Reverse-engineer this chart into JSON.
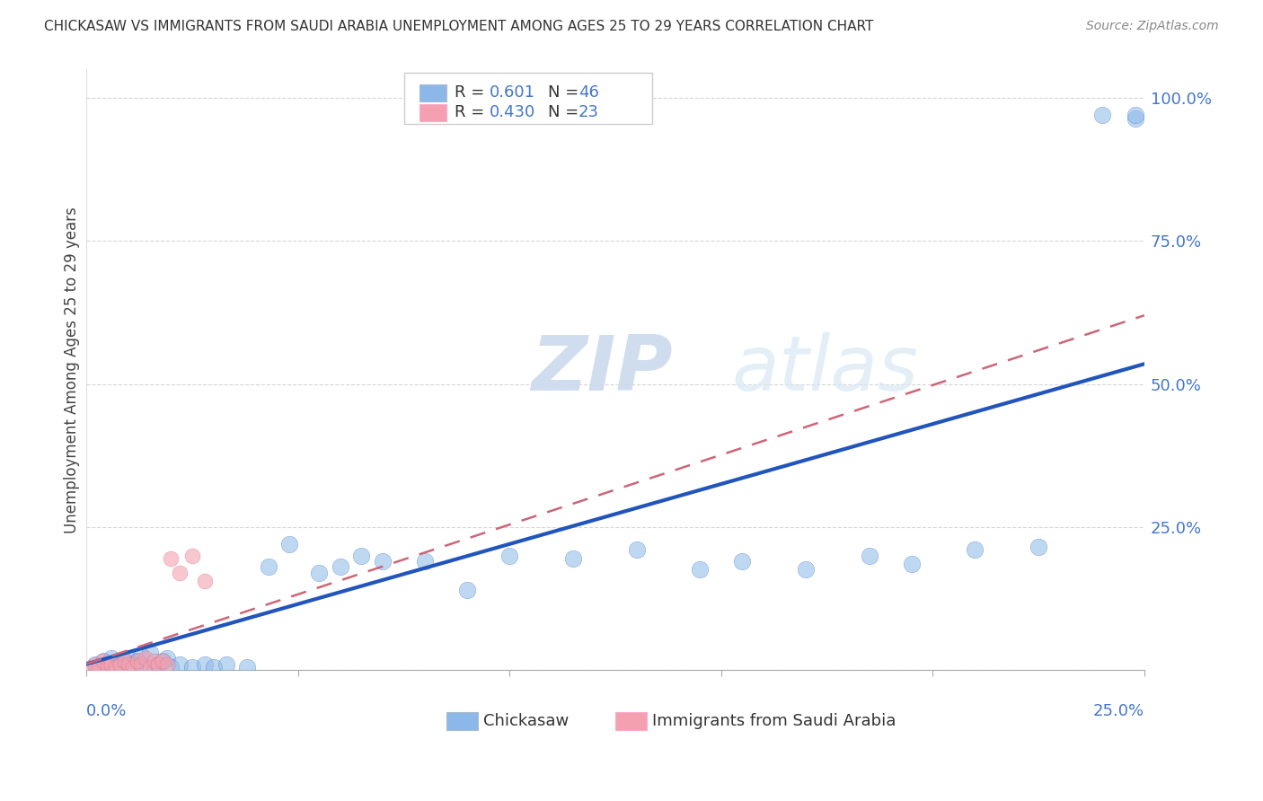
{
  "title": "CHICKASAW VS IMMIGRANTS FROM SAUDI ARABIA UNEMPLOYMENT AMONG AGES 25 TO 29 YEARS CORRELATION CHART",
  "source": "Source: ZipAtlas.com",
  "ylabel": "Unemployment Among Ages 25 to 29 years",
  "xlim": [
    0.0,
    0.25
  ],
  "ylim": [
    0.0,
    1.05
  ],
  "legend_R1": "0.601",
  "legend_N1": "46",
  "legend_R2": "0.430",
  "legend_N2": "23",
  "color_blue": "#8BB8E8",
  "color_pink": "#F4A0B0",
  "color_blue_line": "#2255BB",
  "color_pink_line": "#CC6677",
  "watermark_zip": "ZIP",
  "watermark_atlas": "atlas",
  "chickasaw_x": [
    0.002,
    0.003,
    0.004,
    0.005,
    0.006,
    0.007,
    0.008,
    0.009,
    0.01,
    0.011,
    0.012,
    0.013,
    0.014,
    0.015,
    0.016,
    0.017,
    0.018,
    0.019,
    0.02,
    0.022,
    0.025,
    0.028,
    0.03,
    0.033,
    0.038,
    0.043,
    0.048,
    0.055,
    0.06,
    0.065,
    0.07,
    0.08,
    0.09,
    0.1,
    0.115,
    0.13,
    0.145,
    0.155,
    0.17,
    0.185,
    0.195,
    0.21,
    0.225,
    0.24,
    0.248,
    0.248
  ],
  "chickasaw_y": [
    0.01,
    0.005,
    0.015,
    0.01,
    0.02,
    0.005,
    0.01,
    0.015,
    0.02,
    0.01,
    0.015,
    0.025,
    0.005,
    0.03,
    0.005,
    0.01,
    0.015,
    0.02,
    0.005,
    0.01,
    0.005,
    0.01,
    0.005,
    0.01,
    0.005,
    0.18,
    0.22,
    0.17,
    0.18,
    0.2,
    0.19,
    0.19,
    0.14,
    0.2,
    0.195,
    0.21,
    0.175,
    0.19,
    0.175,
    0.2,
    0.185,
    0.21,
    0.215,
    0.97,
    0.965,
    0.97
  ],
  "saudi_x": [
    0.001,
    0.002,
    0.003,
    0.004,
    0.005,
    0.006,
    0.007,
    0.008,
    0.009,
    0.01,
    0.011,
    0.012,
    0.013,
    0.014,
    0.015,
    0.016,
    0.017,
    0.018,
    0.019,
    0.02,
    0.022,
    0.025,
    0.028
  ],
  "saudi_y": [
    0.005,
    0.01,
    0.005,
    0.015,
    0.005,
    0.01,
    0.005,
    0.01,
    0.015,
    0.01,
    0.005,
    0.015,
    0.01,
    0.02,
    0.005,
    0.015,
    0.01,
    0.015,
    0.01,
    0.195,
    0.17,
    0.2,
    0.155
  ],
  "blue_line_x0": 0.0,
  "blue_line_y0": 0.01,
  "blue_line_x1": 0.25,
  "blue_line_y1": 0.535,
  "pink_line_x0": 0.0,
  "pink_line_y0": 0.01,
  "pink_line_x1": 0.25,
  "pink_line_y1": 0.62
}
